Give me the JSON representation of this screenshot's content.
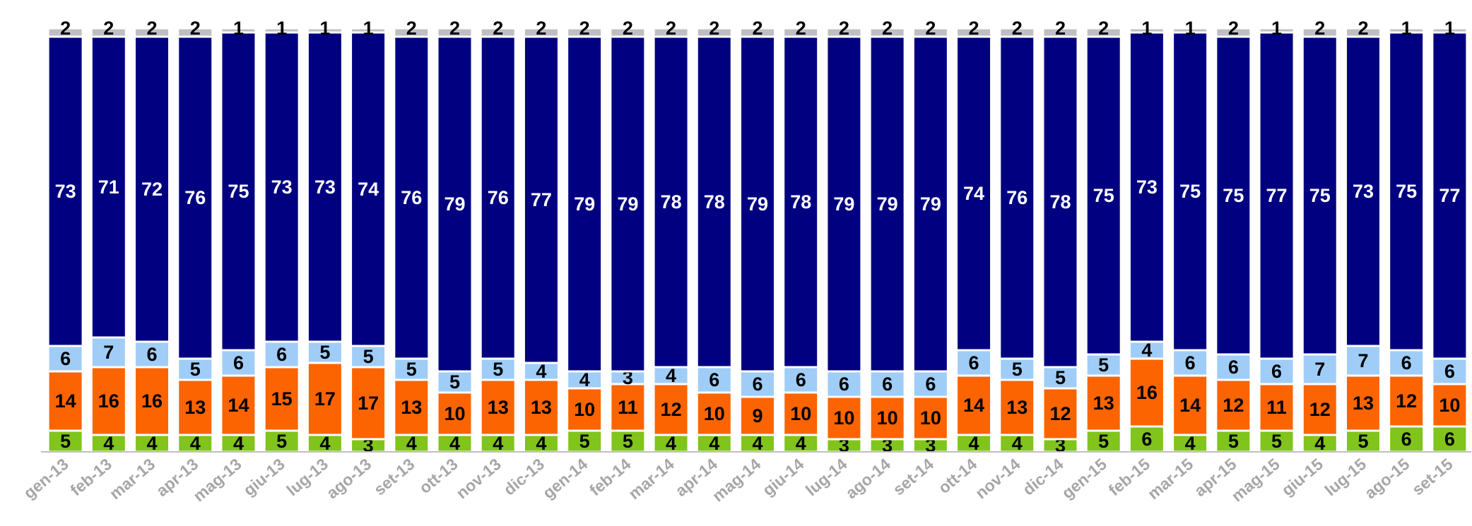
{
  "chart_data": {
    "type": "stacked_bar",
    "categories": [
      "gen-13",
      "feb-13",
      "mar-13",
      "apr-13",
      "mag-13",
      "giu-13",
      "lug-13",
      "ago-13",
      "set-13",
      "ott-13",
      "nov-13",
      "dic-13",
      "gen-14",
      "feb-14",
      "mar-14",
      "apr-14",
      "mag-14",
      "giu-14",
      "lug-14",
      "ago-14",
      "set-14",
      "ott-14",
      "nov-14",
      "dic-14",
      "gen-15",
      "feb-15",
      "mar-15",
      "apr-15",
      "mag-15",
      "giu-15",
      "lug-15",
      "ago-15",
      "set-15"
    ],
    "series": [
      {
        "color": "#80c41c",
        "label_color": "#000000",
        "values": [
          5,
          4,
          4,
          4,
          4,
          5,
          4,
          3,
          4,
          4,
          4,
          4,
          5,
          5,
          4,
          4,
          4,
          4,
          3,
          3,
          3,
          4,
          4,
          3,
          5,
          6,
          4,
          5,
          5,
          4,
          5,
          6,
          6
        ]
      },
      {
        "color": "#fb6400",
        "label_color": "#000000",
        "values": [
          14,
          16,
          16,
          13,
          14,
          15,
          17,
          17,
          13,
          10,
          13,
          13,
          10,
          11,
          12,
          10,
          9,
          10,
          10,
          10,
          10,
          14,
          13,
          12,
          13,
          16,
          14,
          12,
          11,
          12,
          13,
          12,
          10
        ]
      },
      {
        "color": "#9fcdf7",
        "label_color": "#000000",
        "values": [
          6,
          7,
          6,
          5,
          6,
          6,
          5,
          5,
          5,
          5,
          5,
          4,
          4,
          3,
          4,
          6,
          6,
          6,
          6,
          6,
          6,
          6,
          5,
          5,
          5,
          4,
          6,
          6,
          6,
          7,
          7,
          6,
          6
        ]
      },
      {
        "color": "#000080",
        "label_color": "#ffffff",
        "values": [
          73,
          71,
          72,
          76,
          75,
          73,
          73,
          74,
          76,
          79,
          76,
          77,
          79,
          79,
          78,
          78,
          79,
          78,
          79,
          79,
          79,
          74,
          76,
          78,
          75,
          73,
          75,
          75,
          77,
          75,
          73,
          75,
          77
        ]
      },
      {
        "color": "#bfbfbf",
        "label_color": "#000000",
        "values": [
          2,
          2,
          2,
          2,
          1,
          1,
          1,
          1,
          2,
          2,
          2,
          2,
          2,
          2,
          2,
          2,
          2,
          2,
          2,
          2,
          2,
          2,
          2,
          2,
          2,
          1,
          1,
          2,
          1,
          2,
          2,
          1,
          1
        ]
      }
    ],
    "ylim": [
      0,
      100
    ]
  }
}
